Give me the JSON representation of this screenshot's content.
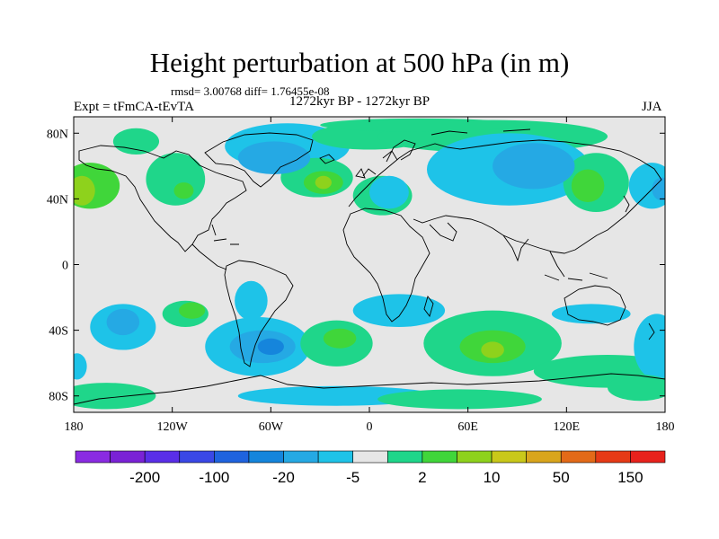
{
  "title": "Height perturbation at 500 hPa (in m)",
  "stats_text": "rmsd= 3.00768 diff= 1.76455e-08",
  "left_label": "Expt = tFmCA-tEvTA",
  "center_label": "1272kyr BP - 1272kyr BP",
  "right_label": "JJA",
  "map": {
    "projection": "cylindrical equidistant",
    "lon_range": [
      -180,
      180
    ],
    "lat_range": [
      -90,
      90
    ],
    "lon_ticks": [
      {
        "value": -180,
        "label": "180"
      },
      {
        "value": -120,
        "label": "120W"
      },
      {
        "value": -60,
        "label": "60W"
      },
      {
        "value": 0,
        "label": "0"
      },
      {
        "value": 60,
        "label": "60E"
      },
      {
        "value": 120,
        "label": "120E"
      },
      {
        "value": 180,
        "label": "180"
      }
    ],
    "lat_ticks": [
      {
        "value": 80,
        "label": "80N"
      },
      {
        "value": 40,
        "label": "40N"
      },
      {
        "value": 0,
        "label": "0"
      },
      {
        "value": -40,
        "label": "40S"
      },
      {
        "value": -80,
        "label": "80S"
      }
    ],
    "background_color": "#e6e6e6",
    "coastline_color": "#000000"
  },
  "colorbar": {
    "colors": [
      "#8a2be2",
      "#7a22d6",
      "#5a2ee8",
      "#3a48e6",
      "#1f63df",
      "#1585dc",
      "#25a9e4",
      "#1ec3e8",
      "#e6e6e6",
      "#1fd68a",
      "#40d63a",
      "#8ed21c",
      "#c9c81a",
      "#d9a51c",
      "#e36a18",
      "#e63a16",
      "#e8221c"
    ],
    "labels": [
      {
        "after_index": 1,
        "label": "-200"
      },
      {
        "after_index": 3,
        "label": "-100"
      },
      {
        "after_index": 5,
        "label": "-20"
      },
      {
        "after_index": 7,
        "label": "-5"
      },
      {
        "after_index": 9,
        "label": "2"
      },
      {
        "after_index": 11,
        "label": "10"
      },
      {
        "after_index": 13,
        "label": "50"
      },
      {
        "after_index": 15,
        "label": "150"
      }
    ]
  },
  "field_blobs": [
    {
      "lon": -170,
      "lat": 48,
      "rx": 18,
      "ry": 14,
      "level": 10
    },
    {
      "lon": -175,
      "lat": 45,
      "rx": 8,
      "ry": 9,
      "level": 11
    },
    {
      "lon": -142,
      "lat": 75,
      "rx": 14,
      "ry": 8,
      "level": 9
    },
    {
      "lon": -118,
      "lat": 52,
      "rx": 18,
      "ry": 16,
      "level": 9
    },
    {
      "lon": -113,
      "lat": 45,
      "rx": 6,
      "ry": 5,
      "level": 10
    },
    {
      "lon": -50,
      "lat": 72,
      "rx": 38,
      "ry": 14,
      "level": 7
    },
    {
      "lon": -58,
      "lat": 65,
      "rx": 22,
      "ry": 10,
      "level": 6
    },
    {
      "lon": -32,
      "lat": 53,
      "rx": 22,
      "ry": 12,
      "level": 9
    },
    {
      "lon": -28,
      "lat": 50,
      "rx": 12,
      "ry": 7,
      "level": 10
    },
    {
      "lon": -28,
      "lat": 50,
      "rx": 5,
      "ry": 4,
      "level": 11
    },
    {
      "lon": 0,
      "lat": 78,
      "rx": 35,
      "ry": 8,
      "level": 9
    },
    {
      "lon": 8,
      "lat": 42,
      "rx": 18,
      "ry": 12,
      "level": 9
    },
    {
      "lon": 12,
      "lat": 44,
      "rx": 12,
      "ry": 10,
      "level": 7
    },
    {
      "lon": 75,
      "lat": 78,
      "rx": 70,
      "ry": 10,
      "level": 9
    },
    {
      "lon": 85,
      "lat": 58,
      "rx": 50,
      "ry": 22,
      "level": 7
    },
    {
      "lon": 100,
      "lat": 60,
      "rx": 25,
      "ry": 14,
      "level": 6
    },
    {
      "lon": 138,
      "lat": 50,
      "rx": 20,
      "ry": 18,
      "level": 9
    },
    {
      "lon": 133,
      "lat": 48,
      "rx": 10,
      "ry": 10,
      "level": 10
    },
    {
      "lon": 172,
      "lat": 48,
      "rx": 14,
      "ry": 14,
      "level": 7
    },
    {
      "lon": 178,
      "lat": 46,
      "rx": 6,
      "ry": 7,
      "level": 6
    },
    {
      "lon": 30,
      "lat": 85,
      "rx": 60,
      "ry": 4,
      "level": 9
    },
    {
      "lon": -150,
      "lat": -38,
      "rx": 20,
      "ry": 14,
      "level": 7
    },
    {
      "lon": -150,
      "lat": -35,
      "rx": 10,
      "ry": 8,
      "level": 6
    },
    {
      "lon": -112,
      "lat": -30,
      "rx": 14,
      "ry": 8,
      "level": 9
    },
    {
      "lon": -108,
      "lat": -28,
      "rx": 8,
      "ry": 5,
      "level": 10
    },
    {
      "lon": -68,
      "lat": -50,
      "rx": 32,
      "ry": 18,
      "level": 7
    },
    {
      "lon": -65,
      "lat": -50,
      "rx": 20,
      "ry": 10,
      "level": 6
    },
    {
      "lon": -60,
      "lat": -50,
      "rx": 8,
      "ry": 5,
      "level": 5
    },
    {
      "lon": -72,
      "lat": -22,
      "rx": 10,
      "ry": 12,
      "level": 7
    },
    {
      "lon": -20,
      "lat": -48,
      "rx": 22,
      "ry": 14,
      "level": 9
    },
    {
      "lon": -18,
      "lat": -45,
      "rx": 10,
      "ry": 6,
      "level": 10
    },
    {
      "lon": 18,
      "lat": -28,
      "rx": 28,
      "ry": 10,
      "level": 7
    },
    {
      "lon": 75,
      "lat": -48,
      "rx": 42,
      "ry": 20,
      "level": 9
    },
    {
      "lon": 75,
      "lat": -50,
      "rx": 20,
      "ry": 10,
      "level": 10
    },
    {
      "lon": 75,
      "lat": -52,
      "rx": 7,
      "ry": 5,
      "level": 11
    },
    {
      "lon": 135,
      "lat": -30,
      "rx": 24,
      "ry": 6,
      "level": 7
    },
    {
      "lon": 145,
      "lat": -65,
      "rx": 45,
      "ry": 10,
      "level": 9
    },
    {
      "lon": 175,
      "lat": -50,
      "rx": 14,
      "ry": 20,
      "level": 7
    },
    {
      "lon": -178,
      "lat": -62,
      "rx": 6,
      "ry": 8,
      "level": 7
    },
    {
      "lon": -160,
      "lat": -80,
      "rx": 30,
      "ry": 8,
      "level": 9
    },
    {
      "lon": -20,
      "lat": -80,
      "rx": 60,
      "ry": 6,
      "level": 7
    },
    {
      "lon": 55,
      "lat": -82,
      "rx": 50,
      "ry": 6,
      "level": 9
    },
    {
      "lon": 165,
      "lat": -75,
      "rx": 20,
      "ry": 8,
      "level": 9
    }
  ]
}
